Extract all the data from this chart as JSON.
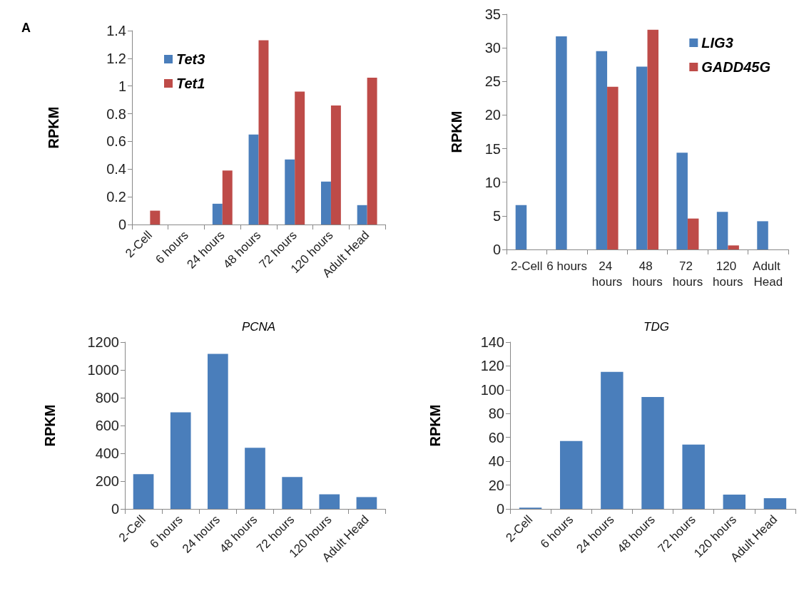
{
  "chart_data": [
    {
      "type": "bar",
      "annotations": [
        "A"
      ],
      "ylabel": "RPKM",
      "categories": [
        "2-Cell",
        "6 hours",
        "24 hours",
        "48 hours",
        "72 hours",
        "120 hours",
        "Adult Head"
      ],
      "series": [
        {
          "name": "Tet3",
          "color": "#4a7ebb",
          "values": [
            0,
            0,
            0.15,
            0.65,
            0.47,
            0.31,
            0.14
          ]
        },
        {
          "name": "Tet1",
          "color": "#be4b48",
          "values": [
            0.1,
            0,
            0.39,
            1.33,
            0.96,
            0.86,
            1.06
          ]
        }
      ],
      "ylim": [
        0,
        1.4
      ],
      "yticks": [
        0,
        0.2,
        0.4,
        0.6,
        0.8,
        1,
        1.2,
        1.4
      ],
      "grid": false,
      "legend": "top left"
    },
    {
      "type": "bar",
      "ylabel": "RPKM",
      "categories": [
        "2-Cell",
        "6 hours",
        "24 hours",
        "48 hours",
        "72 hours",
        "120 hours",
        "Adult Head"
      ],
      "series": [
        {
          "name": "LIG3",
          "color": "#4a7ebb",
          "values": [
            6.6,
            31.7,
            29.5,
            27.2,
            14.4,
            5.6,
            4.2
          ]
        },
        {
          "name": "GADD45G",
          "color": "#be4b48",
          "values": [
            0,
            0,
            24.2,
            32.7,
            4.6,
            0.6,
            0
          ]
        }
      ],
      "ylim": [
        0,
        35
      ],
      "yticks": [
        0,
        5,
        10,
        15,
        20,
        25,
        30,
        35
      ],
      "grid": false,
      "legend": "top right"
    },
    {
      "type": "bar",
      "title": "PCNA",
      "ylabel": "RPKM",
      "categories": [
        "2-Cell",
        "6 hours",
        "24 hours",
        "48 hours",
        "72 hours",
        "120 hours",
        "Adult Head"
      ],
      "series": [
        {
          "color": "#4a7ebb",
          "values": [
            250,
            695,
            1115,
            440,
            230,
            105,
            85
          ]
        }
      ],
      "ylim": [
        0,
        1200
      ],
      "yticks": [
        0,
        200,
        400,
        600,
        800,
        1000,
        1200
      ],
      "grid": false,
      "legend": false
    },
    {
      "type": "bar",
      "title": "TDG",
      "ylabel": "RPKM",
      "categories": [
        "2-Cell",
        "6 hours",
        "24 hours",
        "48 hours",
        "72 hours",
        "120 hours",
        "Adult Head"
      ],
      "series": [
        {
          "color": "#4a7ebb",
          "values": [
            1,
            57,
            115,
            94,
            54,
            12,
            9
          ]
        }
      ],
      "ylim": [
        0,
        140
      ],
      "yticks": [
        0,
        20,
        40,
        60,
        80,
        100,
        120,
        140
      ],
      "grid": false,
      "legend": false
    }
  ]
}
